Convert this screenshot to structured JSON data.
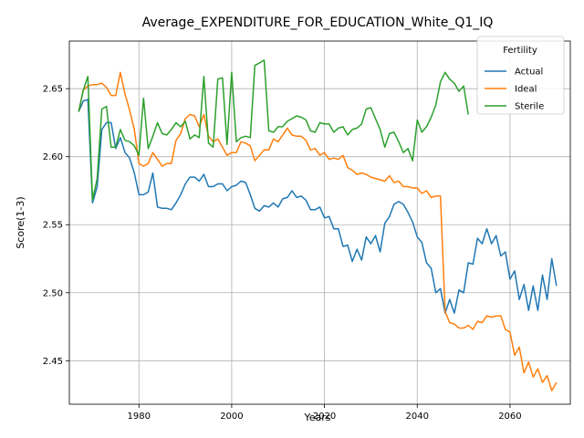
{
  "chart_data": {
    "type": "line",
    "title": "Average_EXPENDITURE_FOR_EDUCATION_White_Q1_IQ",
    "xlabel": "Years",
    "ylabel": "Score(1-3)",
    "xlim": [
      1965,
      2073
    ],
    "ylim": [
      2.418,
      2.685
    ],
    "xticks": [
      1980,
      2000,
      2020,
      2040,
      2060
    ],
    "yticks": [
      2.45,
      2.5,
      2.55,
      2.6,
      2.65
    ],
    "ytick_labels": [
      "2.45",
      "2.50",
      "2.55",
      "2.60",
      "2.65"
    ],
    "grid": true,
    "legend": {
      "title": "Fertility",
      "placement": "top-right"
    },
    "colors": {
      "Actual": "#1f77b4",
      "Ideal": "#ff7f0e",
      "Sterile": "#2ca02c"
    },
    "series": [
      {
        "name": "Actual",
        "x": [
          1967,
          1968,
          1969,
          1970,
          1971,
          1972,
          1973,
          1974,
          1975,
          1976,
          1977,
          1978,
          1979,
          1980,
          1981,
          1982,
          1983,
          1984,
          1985,
          1986,
          1987,
          1988,
          1989,
          1990,
          1991,
          1992,
          1993,
          1994,
          1995,
          1996,
          1997,
          1998,
          1999,
          2000,
          2001,
          2002,
          2003,
          2004,
          2005,
          2006,
          2007,
          2008,
          2009,
          2010,
          2011,
          2012,
          2013,
          2014,
          2015,
          2016,
          2017,
          2018,
          2019,
          2020,
          2021,
          2022,
          2023,
          2024,
          2025,
          2026,
          2027,
          2028,
          2029,
          2030,
          2031,
          2032,
          2033,
          2034,
          2035,
          2036,
          2037,
          2038,
          2039,
          2040,
          2041,
          2042,
          2043,
          2044,
          2045,
          2046,
          2047,
          2048,
          2049,
          2050,
          2051,
          2052,
          2053,
          2054,
          2055,
          2056,
          2057,
          2058,
          2059,
          2060,
          2061,
          2062,
          2063,
          2064,
          2065,
          2066,
          2067,
          2068,
          2069,
          2070
        ],
        "values": [
          2.633,
          2.641,
          2.642,
          2.566,
          2.578,
          2.62,
          2.625,
          2.625,
          2.606,
          2.614,
          2.603,
          2.599,
          2.588,
          2.572,
          2.572,
          2.574,
          2.588,
          2.563,
          2.562,
          2.562,
          2.561,
          2.566,
          2.572,
          2.58,
          2.585,
          2.585,
          2.582,
          2.587,
          2.578,
          2.578,
          2.58,
          2.58,
          2.575,
          2.578,
          2.579,
          2.582,
          2.581,
          2.572,
          2.562,
          2.56,
          2.564,
          2.563,
          2.566,
          2.563,
          2.569,
          2.57,
          2.575,
          2.57,
          2.571,
          2.568,
          2.561,
          2.561,
          2.563,
          2.555,
          2.556,
          2.547,
          2.547,
          2.534,
          2.535,
          2.523,
          2.532,
          2.524,
          2.541,
          2.536,
          2.542,
          2.53,
          2.551,
          2.556,
          2.565,
          2.567,
          2.565,
          2.559,
          2.552,
          2.541,
          2.537,
          2.522,
          2.518,
          2.5,
          2.503,
          2.485,
          2.495,
          2.485,
          2.502,
          2.5,
          2.522,
          2.521,
          2.54,
          2.536,
          2.547,
          2.536,
          2.542,
          2.527,
          2.53,
          2.51,
          2.516,
          2.495,
          2.506,
          2.487,
          2.505,
          2.487,
          2.513,
          2.495,
          2.525,
          2.505
        ]
      },
      {
        "name": "Ideal",
        "x": [
          1967,
          1968,
          1969,
          1970,
          1971,
          1972,
          1973,
          1974,
          1975,
          1976,
          1977,
          1978,
          1979,
          1980,
          1981,
          1982,
          1983,
          1984,
          1985,
          1986,
          1987,
          1988,
          1989,
          1990,
          1991,
          1992,
          1993,
          1994,
          1995,
          1996,
          1997,
          1998,
          1999,
          2000,
          2001,
          2002,
          2003,
          2004,
          2005,
          2006,
          2007,
          2008,
          2009,
          2010,
          2011,
          2012,
          2013,
          2014,
          2015,
          2016,
          2017,
          2018,
          2019,
          2020,
          2021,
          2022,
          2023,
          2024,
          2025,
          2026,
          2027,
          2028,
          2029,
          2030,
          2031,
          2032,
          2033,
          2034,
          2035,
          2036,
          2037,
          2038,
          2039,
          2040,
          2041,
          2042,
          2043,
          2044,
          2045,
          2046,
          2047,
          2048,
          2049,
          2050,
          2051,
          2052,
          2053,
          2054,
          2055,
          2056,
          2057,
          2058,
          2059,
          2060,
          2061,
          2062,
          2063,
          2064,
          2065,
          2066,
          2067,
          2068,
          2069,
          2070
        ],
        "values": [
          2.633,
          2.649,
          2.652,
          2.653,
          2.653,
          2.654,
          2.651,
          2.645,
          2.645,
          2.662,
          2.646,
          2.634,
          2.62,
          2.595,
          2.593,
          2.595,
          2.603,
          2.598,
          2.593,
          2.595,
          2.595,
          2.612,
          2.617,
          2.628,
          2.631,
          2.63,
          2.622,
          2.631,
          2.615,
          2.611,
          2.613,
          2.607,
          2.601,
          2.603,
          2.603,
          2.611,
          2.61,
          2.608,
          2.597,
          2.601,
          2.605,
          2.605,
          2.613,
          2.611,
          2.616,
          2.621,
          2.616,
          2.615,
          2.615,
          2.612,
          2.605,
          2.606,
          2.601,
          2.603,
          2.598,
          2.599,
          2.598,
          2.601,
          2.592,
          2.59,
          2.587,
          2.588,
          2.587,
          2.585,
          2.584,
          2.583,
          2.582,
          2.586,
          2.581,
          2.582,
          2.578,
          2.578,
          2.577,
          2.577,
          2.573,
          2.575,
          2.57,
          2.571,
          2.571,
          2.486,
          2.478,
          2.477,
          2.474,
          2.474,
          2.476,
          2.473,
          2.479,
          2.478,
          2.483,
          2.482,
          2.483,
          2.483,
          2.473,
          2.471,
          2.454,
          2.46,
          2.441,
          2.449,
          2.438,
          2.444,
          2.434,
          2.439,
          2.428,
          2.434
        ]
      },
      {
        "name": "Sterile",
        "x": [
          1967,
          1968,
          1969,
          1970,
          1971,
          1972,
          1973,
          1974,
          1975,
          1976,
          1977,
          1978,
          1979,
          1980,
          1981,
          1982,
          1983,
          1984,
          1985,
          1986,
          1987,
          1988,
          1989,
          1990,
          1991,
          1992,
          1993,
          1994,
          1995,
          1996,
          1997,
          1998,
          1999,
          2000,
          2001,
          2002,
          2003,
          2004,
          2005,
          2006,
          2007,
          2008,
          2009,
          2010,
          2011,
          2012,
          2013,
          2014,
          2015,
          2016,
          2017,
          2018,
          2019,
          2020,
          2021,
          2022,
          2023,
          2024,
          2025,
          2026,
          2027,
          2028,
          2029,
          2030,
          2031,
          2032,
          2033,
          2034,
          2035,
          2036,
          2037,
          2038,
          2039,
          2040,
          2041,
          2042,
          2043,
          2044,
          2045,
          2046,
          2047,
          2048,
          2049,
          2050,
          2051
        ],
        "values": [
          2.633,
          2.649,
          2.659,
          2.568,
          2.584,
          2.635,
          2.637,
          2.607,
          2.607,
          2.62,
          2.612,
          2.611,
          2.608,
          2.601,
          2.643,
          2.606,
          2.615,
          2.625,
          2.617,
          2.616,
          2.62,
          2.625,
          2.622,
          2.626,
          2.613,
          2.616,
          2.614,
          2.659,
          2.61,
          2.607,
          2.657,
          2.658,
          2.609,
          2.662,
          2.611,
          2.614,
          2.615,
          2.614,
          2.667,
          2.669,
          2.671,
          2.619,
          2.618,
          2.622,
          2.622,
          2.626,
          2.628,
          2.63,
          2.629,
          2.627,
          2.619,
          2.618,
          2.625,
          2.624,
          2.624,
          2.618,
          2.621,
          2.622,
          2.616,
          2.62,
          2.621,
          2.624,
          2.635,
          2.636,
          2.628,
          2.62,
          2.607,
          2.617,
          2.618,
          2.611,
          2.603,
          2.606,
          2.597,
          2.627,
          2.618,
          2.622,
          2.629,
          2.638,
          2.655,
          2.662,
          2.657,
          2.654,
          2.648,
          2.652,
          2.631
        ]
      }
    ]
  }
}
